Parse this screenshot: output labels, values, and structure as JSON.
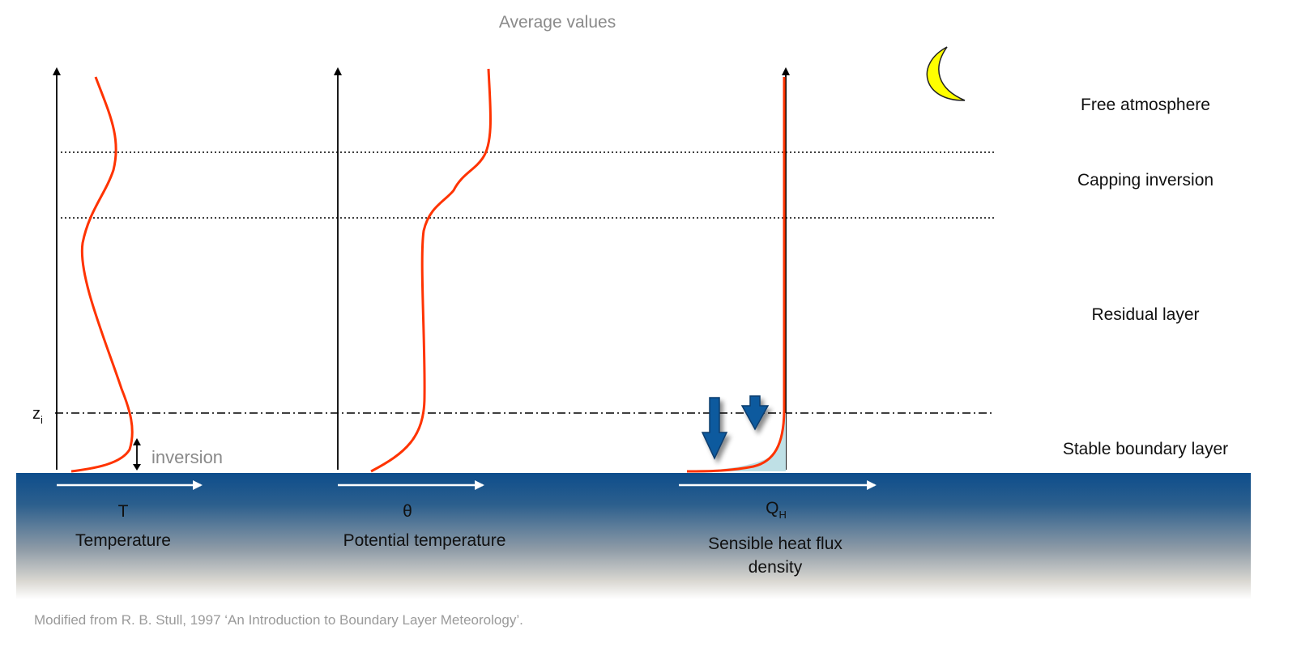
{
  "title": "Average values",
  "credit": "Modified from R. B. Stull, 1997 ‘An Introduction to Boundary Layer Meteorology’.",
  "layers": {
    "free_atmosphere": "Free atmosphere",
    "capping_inversion": "Capping inversion",
    "residual_layer": "Residual layer",
    "stable_boundary_layer": "Stable boundary layer"
  },
  "zi_label": {
    "main": "z",
    "sub": "i"
  },
  "inversion_label": "inversion",
  "panels": [
    {
      "symbol": "T",
      "symbol_sub": "",
      "name": "Temperature",
      "name_line2": ""
    },
    {
      "symbol": "θ",
      "symbol_sub": "",
      "name": "Potential temperature",
      "name_line2": ""
    },
    {
      "symbol": "Q",
      "symbol_sub": "H",
      "name": "Sensible heat flux",
      "name_line2": "density"
    }
  ],
  "colors": {
    "profile": "#ff3300",
    "ground_top": "#0d4d8c",
    "ground_bottom": "#ffffff",
    "flux_arrow": "#0e5a9e",
    "flux_fill": "#bfe0e6",
    "moon": "#ffff00"
  },
  "icons": {
    "moon": "crescent-moon-icon",
    "flux_arrows": "down-arrow-icon"
  }
}
